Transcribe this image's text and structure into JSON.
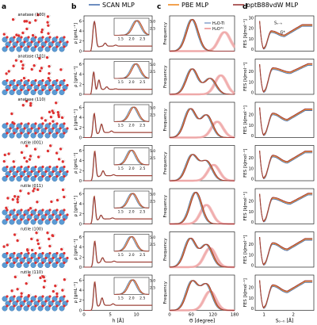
{
  "panel_letters": [
    "a",
    "b",
    "c",
    "d"
  ],
  "legend": {
    "items": [
      {
        "label": "SCAN MLP",
        "color": "#4a72b0"
      },
      {
        "label": "PBE MLP",
        "color": "#f08a24"
      },
      {
        "label": "optB88vdW MLP",
        "color": "#9b3a3a"
      }
    ]
  },
  "legend_c": {
    "items": [
      {
        "label": "H₂O-Ti",
        "color": "#4a72b0"
      },
      {
        "label": "H₂O⁽¹⁾",
        "color": "#f0a8a8"
      }
    ]
  },
  "surfaces": [
    {
      "name": "anatase (100)",
      "annotation": ""
    },
    {
      "name": "anatase (101)",
      "annotation": ""
    },
    {
      "name": "anatase (110)",
      "annotation": ""
    },
    {
      "name": "rutile (001)",
      "annotation": ""
    },
    {
      "name": "rutile (011)",
      "annotation": ""
    },
    {
      "name": "rutile (100)",
      "annotation": ""
    },
    {
      "name": "rutile (110)",
      "annotation": ""
    }
  ],
  "atom_labels": {
    "O": "O",
    "Ti": "Ti",
    "H": "H"
  },
  "col_b": {
    "ylabel": "ρ [gmL⁻¹]",
    "xlabel": "h [Å]",
    "yticks": [
      "0",
      "2",
      "4",
      "6"
    ],
    "xticks": [
      "0",
      "5",
      "10"
    ],
    "inset_yticks": [
      "2.5",
      "5.0"
    ],
    "inset_xticks": [
      "1.5",
      "2.0",
      "2.5"
    ]
  },
  "col_c": {
    "ylabel": "Frequency",
    "xlabel": "Θ [degree]",
    "xticks": [
      "0",
      "60",
      "120",
      "180"
    ]
  },
  "col_d": {
    "ylabel": "FES [kJmol⁻¹]",
    "xlabel": "Sₒ₋ₕ [Å]",
    "yticks_first": [
      "0",
      "10",
      "20",
      "30"
    ],
    "yticks": [
      "0",
      "10",
      "20"
    ],
    "xticks": [
      "1",
      "2"
    ],
    "annotations": {
      "s": "Sₒ₋ₕ",
      "g": "G*"
    }
  },
  "chart_data": [
    {
      "type": "line",
      "title": "",
      "xlabel": "h [Å]",
      "ylabel": "ρ [gmL⁻¹]",
      "xlim": [
        0,
        13
      ],
      "ylim": [
        0,
        7
      ],
      "series_names": [
        "SCAN MLP",
        "PBE MLP",
        "optB88vdW MLP"
      ],
      "profiles": [
        {
          "surface": "anatase (100)",
          "peaks": [
            [
              1.8,
              4.8
            ],
            [
              2.1,
              4.2
            ],
            [
              4.0,
              1.6
            ],
            [
              6.0,
              1.2
            ]
          ],
          "inset_peak": 2.25
        },
        {
          "surface": "anatase (101)",
          "peaks": [
            [
              1.8,
              5.2
            ],
            [
              2.8,
              3.0
            ],
            [
              4.3,
              1.5
            ],
            [
              6.0,
              1.1
            ]
          ],
          "inset_peak": 2.2
        },
        {
          "surface": "anatase (110)",
          "peaks": [
            [
              1.9,
              5.5
            ],
            [
              3.3,
              2.7
            ],
            [
              5.2,
              1.3
            ]
          ],
          "inset_peak": 2.1
        },
        {
          "surface": "rutile (001)",
          "peaks": [
            [
              2.0,
              6.5
            ],
            [
              3.6,
              2.0
            ],
            [
              5.6,
              1.2
            ]
          ],
          "inset_peak": 2.0
        },
        {
          "surface": "rutile (011)",
          "peaks": [
            [
              1.9,
              6.2
            ],
            [
              3.2,
              1.8
            ],
            [
              5.4,
              1.2
            ]
          ],
          "inset_peak": 2.05
        },
        {
          "surface": "rutile (100)",
          "peaks": [
            [
              2.0,
              5.8
            ],
            [
              3.5,
              1.9
            ],
            [
              5.7,
              1.2
            ]
          ],
          "inset_peak": 2.0
        },
        {
          "surface": "rutile (110)",
          "peaks": [
            [
              2.0,
              6.3
            ],
            [
              3.4,
              2.5
            ],
            [
              5.5,
              1.3
            ]
          ],
          "inset_peak": 2.05
        }
      ]
    },
    {
      "type": "line",
      "title": "",
      "xlabel": "Θ [degree]",
      "ylabel": "Frequency",
      "xlim": [
        0,
        180
      ],
      "series_names": [
        "H₂O-Ti",
        "H₂O⁽¹⁾"
      ],
      "distributions": [
        {
          "surface": "anatase (100)",
          "ti_peaks": [
            [
              60,
              1.0
            ]
          ],
          "h1_peaks": [
            [
              150,
              0.6
            ]
          ]
        },
        {
          "surface": "anatase (101)",
          "ti_peaks": [
            [
              60,
              0.8
            ],
            [
              110,
              0.5
            ]
          ],
          "h1_peaks": [
            [
              140,
              0.6
            ]
          ]
        },
        {
          "surface": "anatase (110)",
          "ti_peaks": [
            [
              55,
              0.9
            ],
            [
              100,
              0.7
            ]
          ],
          "h1_peaks": [
            [
              130,
              0.5
            ]
          ]
        },
        {
          "surface": "rutile (001)",
          "ti_peaks": [
            [
              60,
              0.8
            ],
            [
              100,
              0.6
            ]
          ],
          "h1_peaks": [
            [
              120,
              0.5
            ]
          ]
        },
        {
          "surface": "rutile (011)",
          "ti_peaks": [
            [
              70,
              1.0
            ]
          ],
          "h1_peaks": [
            [
              100,
              0.6
            ]
          ]
        },
        {
          "surface": "rutile (100)",
          "ti_peaks": [
            [
              55,
              0.9
            ],
            [
              100,
              0.7
            ]
          ],
          "h1_peaks": [
            [
              110,
              0.6
            ]
          ]
        },
        {
          "surface": "rutile (110)",
          "ti_peaks": [
            [
              60,
              0.9
            ],
            [
              100,
              0.8
            ]
          ],
          "h1_peaks": [
            [
              110,
              0.6
            ]
          ]
        }
      ]
    },
    {
      "type": "line",
      "title": "",
      "xlabel": "Sₒ₋ₕ [Å]",
      "ylabel": "FES [kJmol⁻¹]",
      "xlim": [
        0.7,
        2.7
      ],
      "ylim": [
        -2,
        32
      ],
      "series_names": [
        "SCAN MLP",
        "PBE MLP",
        "optB88vdW MLP"
      ],
      "curves": [
        {
          "surface": "anatase (100)",
          "min_x": 1.0,
          "barrier_x": 1.25,
          "barrier": 16,
          "second_min_x": 1.7,
          "second_min": 12,
          "far": 22
        },
        {
          "surface": "anatase (101)",
          "min_x": 1.0,
          "barrier_x": 1.3,
          "barrier": 22,
          "second_min_x": 1.9,
          "second_min": 18,
          "far": 26
        },
        {
          "surface": "anatase (110)",
          "min_x": 1.0,
          "barrier_x": 1.3,
          "barrier": 20,
          "second_min_x": 1.8,
          "second_min": 14,
          "far": 24
        },
        {
          "surface": "rutile (001)",
          "min_x": 1.0,
          "barrier_x": 1.3,
          "barrier": 21,
          "second_min_x": 1.8,
          "second_min": 15,
          "far": 25
        },
        {
          "surface": "rutile (011)",
          "min_x": 1.0,
          "barrier_x": 1.3,
          "barrier": 22,
          "second_min_x": 1.9,
          "second_min": 17,
          "far": 26
        },
        {
          "surface": "rutile (100)",
          "min_x": 1.0,
          "barrier_x": 1.3,
          "barrier": 20,
          "second_min_x": 1.8,
          "second_min": 14,
          "far": 24
        },
        {
          "surface": "rutile (110)",
          "min_x": 1.0,
          "barrier_x": 1.3,
          "barrier": 21,
          "second_min_x": 1.8,
          "second_min": 15,
          "far": 25
        }
      ]
    }
  ]
}
